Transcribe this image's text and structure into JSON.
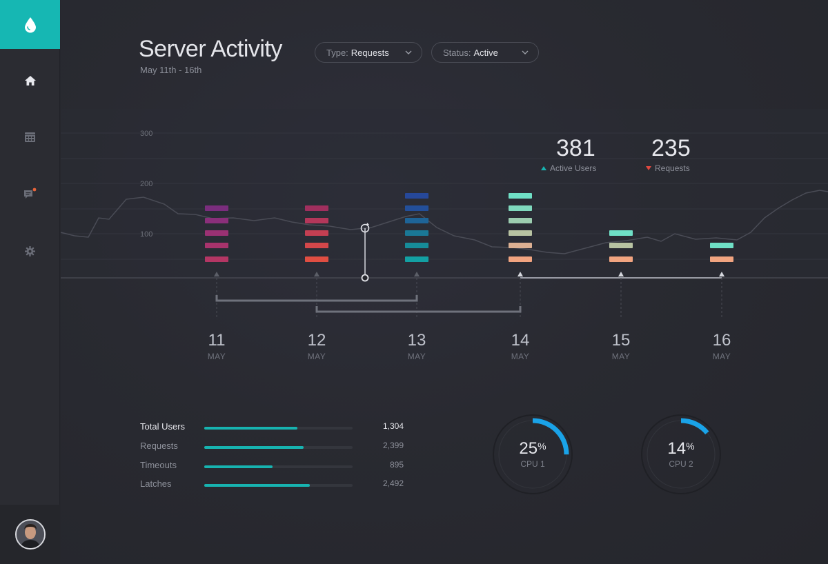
{
  "header": {
    "title": "Server Activity",
    "subtitle": "May 11th - 16th"
  },
  "filters": [
    {
      "label": "Type:",
      "value": "Requests"
    },
    {
      "label": "Status:",
      "value": "Active"
    }
  ],
  "nav": {
    "items": [
      {
        "icon": "home-icon"
      },
      {
        "icon": "calendar-icon"
      },
      {
        "icon": "chat-icon",
        "badge": true
      },
      {
        "icon": "gear-icon"
      }
    ]
  },
  "kpis": [
    {
      "value": "381",
      "label": "Active Users",
      "trend": "up"
    },
    {
      "value": "235",
      "label": "Requests",
      "trend": "down"
    }
  ],
  "chart_data": {
    "type": "bar",
    "y_ticks": [
      "300",
      "200",
      "100"
    ],
    "days": [
      {
        "day": "11",
        "month": "MAY",
        "segments": 5
      },
      {
        "day": "12",
        "month": "MAY",
        "segments": 5
      },
      {
        "day": "13",
        "month": "MAY",
        "segments": 6
      },
      {
        "day": "14",
        "month": "MAY",
        "segments": 6
      },
      {
        "day": "15",
        "month": "MAY",
        "segments": 3
      },
      {
        "day": "16",
        "month": "MAY",
        "segments": 2
      }
    ]
  },
  "stats": [
    {
      "label": "Total Users",
      "value": "1,304",
      "fraction": 0.63,
      "active": true
    },
    {
      "label": "Requests",
      "value": "2,399",
      "fraction": 0.67,
      "active": false
    },
    {
      "label": "Timeouts",
      "value": "895",
      "fraction": 0.46,
      "active": false
    },
    {
      "label": "Latches",
      "value": "2,492",
      "fraction": 0.71,
      "active": false
    }
  ],
  "gauges": [
    {
      "value": "25",
      "unit": "%",
      "label": "CPU 1",
      "fraction": 0.25
    },
    {
      "value": "14",
      "unit": "%",
      "label": "CPU 2",
      "fraction": 0.14
    }
  ],
  "colors": {
    "accent": "#16b7b3",
    "gauge": "#1aa3e8",
    "up": "#17b3b0",
    "down": "#e0483f"
  }
}
